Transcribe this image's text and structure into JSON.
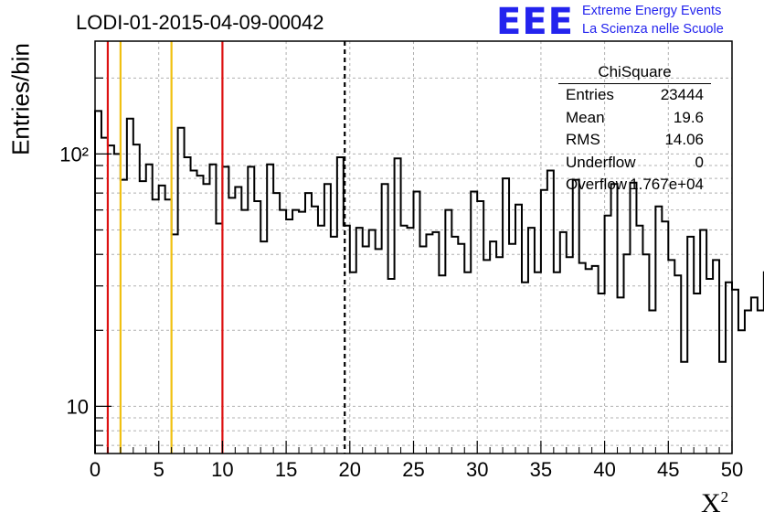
{
  "title": "LODI-01-2015-04-09-00042",
  "logo": {
    "mark": "EEE",
    "line1": "Extreme Energy Events",
    "line2": "La Scienza nelle Scuole"
  },
  "stats": {
    "name": "ChiSquare",
    "rows": [
      {
        "key": "Entries",
        "value": "23444"
      },
      {
        "key": "Mean",
        "value": "19.6"
      },
      {
        "key": "RMS",
        "value": "14.06"
      },
      {
        "key": "Underflow",
        "value": "0"
      },
      {
        "key": "Overflow",
        "value": "1.767e+04"
      }
    ]
  },
  "colors": {
    "red": "#dd1111",
    "yellow": "#f0c010",
    "black": "#000000",
    "grid": "#b0b0b0"
  },
  "chart_data": {
    "type": "histogram",
    "title": "LODI-01-2015-04-09-00042",
    "xlabel": "χ²",
    "ylabel": "Entries/bin",
    "xlim": [
      0,
      50
    ],
    "ylim": [
      6.5,
      280
    ],
    "yscale": "log",
    "grid": true,
    "bin_width": 0.5,
    "x_ticks": [
      0,
      5,
      10,
      15,
      20,
      25,
      30,
      35,
      40,
      45,
      50
    ],
    "y_tick_labels": [
      {
        "value": 10,
        "label": "10"
      },
      {
        "value": 100,
        "label": "10²"
      }
    ],
    "values": [
      148,
      116,
      108,
      100,
      79,
      138,
      109,
      78,
      91,
      66,
      75,
      66,
      48,
      127,
      97,
      86,
      82,
      76,
      91,
      53,
      89,
      67,
      74,
      60,
      89,
      65,
      45,
      91,
      70,
      60,
      55,
      60,
      59,
      70,
      62,
      52,
      76,
      47,
      97,
      52,
      34,
      51,
      43,
      50,
      42,
      76,
      32,
      96,
      52,
      51,
      71,
      43,
      48,
      49,
      33,
      60,
      47,
      44,
      34,
      71,
      65,
      38,
      45,
      39,
      80,
      44,
      63,
      31,
      51,
      34,
      72,
      86,
      34,
      49,
      39,
      79,
      37,
      35,
      36,
      28,
      57,
      76,
      27,
      40,
      77,
      52,
      40,
      24,
      62,
      54,
      38,
      33,
      15,
      47,
      28,
      50,
      32,
      38,
      15,
      31,
      29,
      20,
      24,
      27,
      24,
      34,
      53,
      19,
      26,
      25,
      37,
      36,
      29,
      20,
      17,
      15,
      14,
      23,
      31,
      20,
      33,
      30,
      33,
      14,
      9,
      31,
      14,
      18,
      12,
      49,
      40
    ],
    "reference_lines": [
      {
        "x": 1,
        "color": "red",
        "style": "solid"
      },
      {
        "x": 2,
        "color": "yellow",
        "style": "solid"
      },
      {
        "x": 6,
        "color": "yellow",
        "style": "solid"
      },
      {
        "x": 10,
        "color": "red",
        "style": "solid"
      },
      {
        "x": 19.6,
        "color": "black",
        "style": "dashed"
      }
    ]
  }
}
